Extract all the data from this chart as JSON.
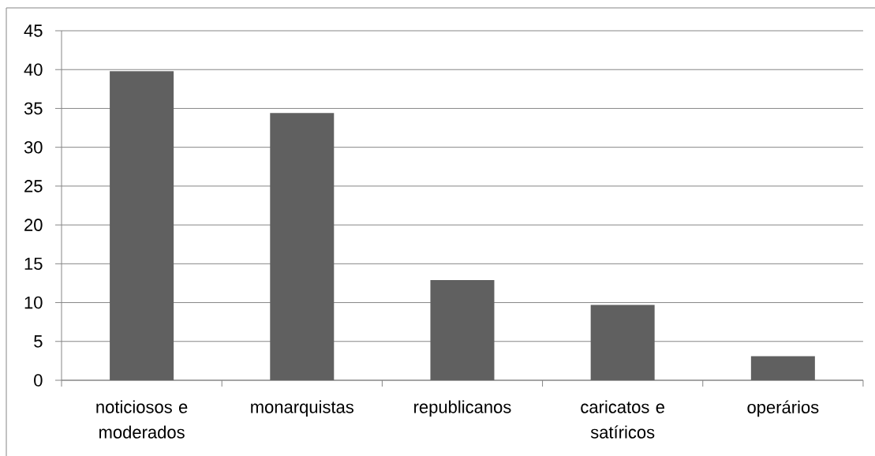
{
  "chart_data": {
    "type": "bar",
    "categories": [
      "noticiosos e moderados",
      "monarquistas",
      "republicanos",
      "caricatos e satíricos",
      "operários"
    ],
    "values": [
      39.8,
      34.4,
      12.9,
      9.7,
      3.1
    ],
    "color": "#606060",
    "ylim": [
      0,
      45
    ],
    "yticks": [
      0,
      5,
      10,
      15,
      20,
      25,
      30,
      35,
      40,
      45
    ],
    "grid": "y"
  }
}
